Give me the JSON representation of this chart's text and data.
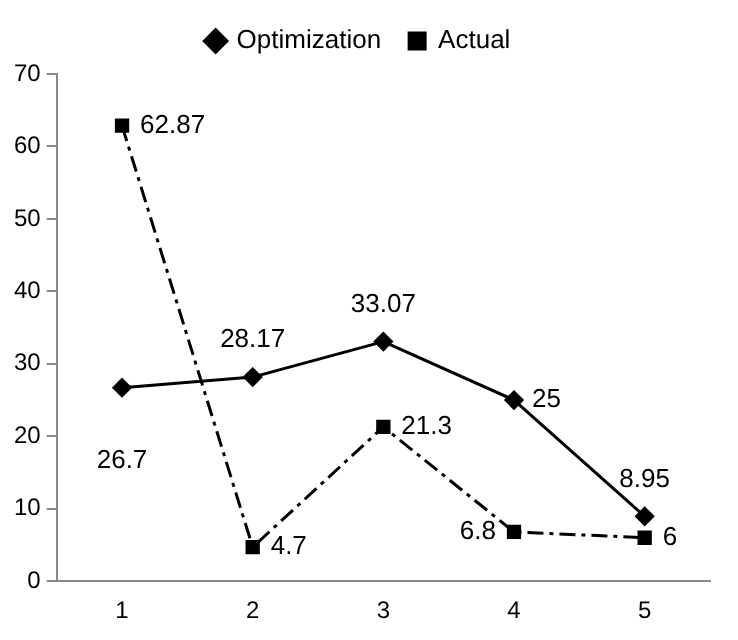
{
  "chart_data": {
    "type": "line",
    "categories": [
      "1",
      "2",
      "3",
      "4",
      "5"
    ],
    "series": [
      {
        "name": "Optimization",
        "color": "#000000",
        "values": [
          26.7,
          28.17,
          33.07,
          25,
          8.95
        ],
        "marker": "diamond",
        "line_style": "solid"
      },
      {
        "name": "Actual",
        "color": "#000000",
        "values": [
          62.87,
          4.7,
          21.3,
          6.8,
          6
        ],
        "marker": "square",
        "line_style": "dashed"
      }
    ],
    "ylim": [
      0,
      70
    ],
    "yticks": [
      0,
      10,
      20,
      30,
      40,
      50,
      60,
      70
    ],
    "grid": false,
    "legend": "top",
    "data_labels": true
  }
}
